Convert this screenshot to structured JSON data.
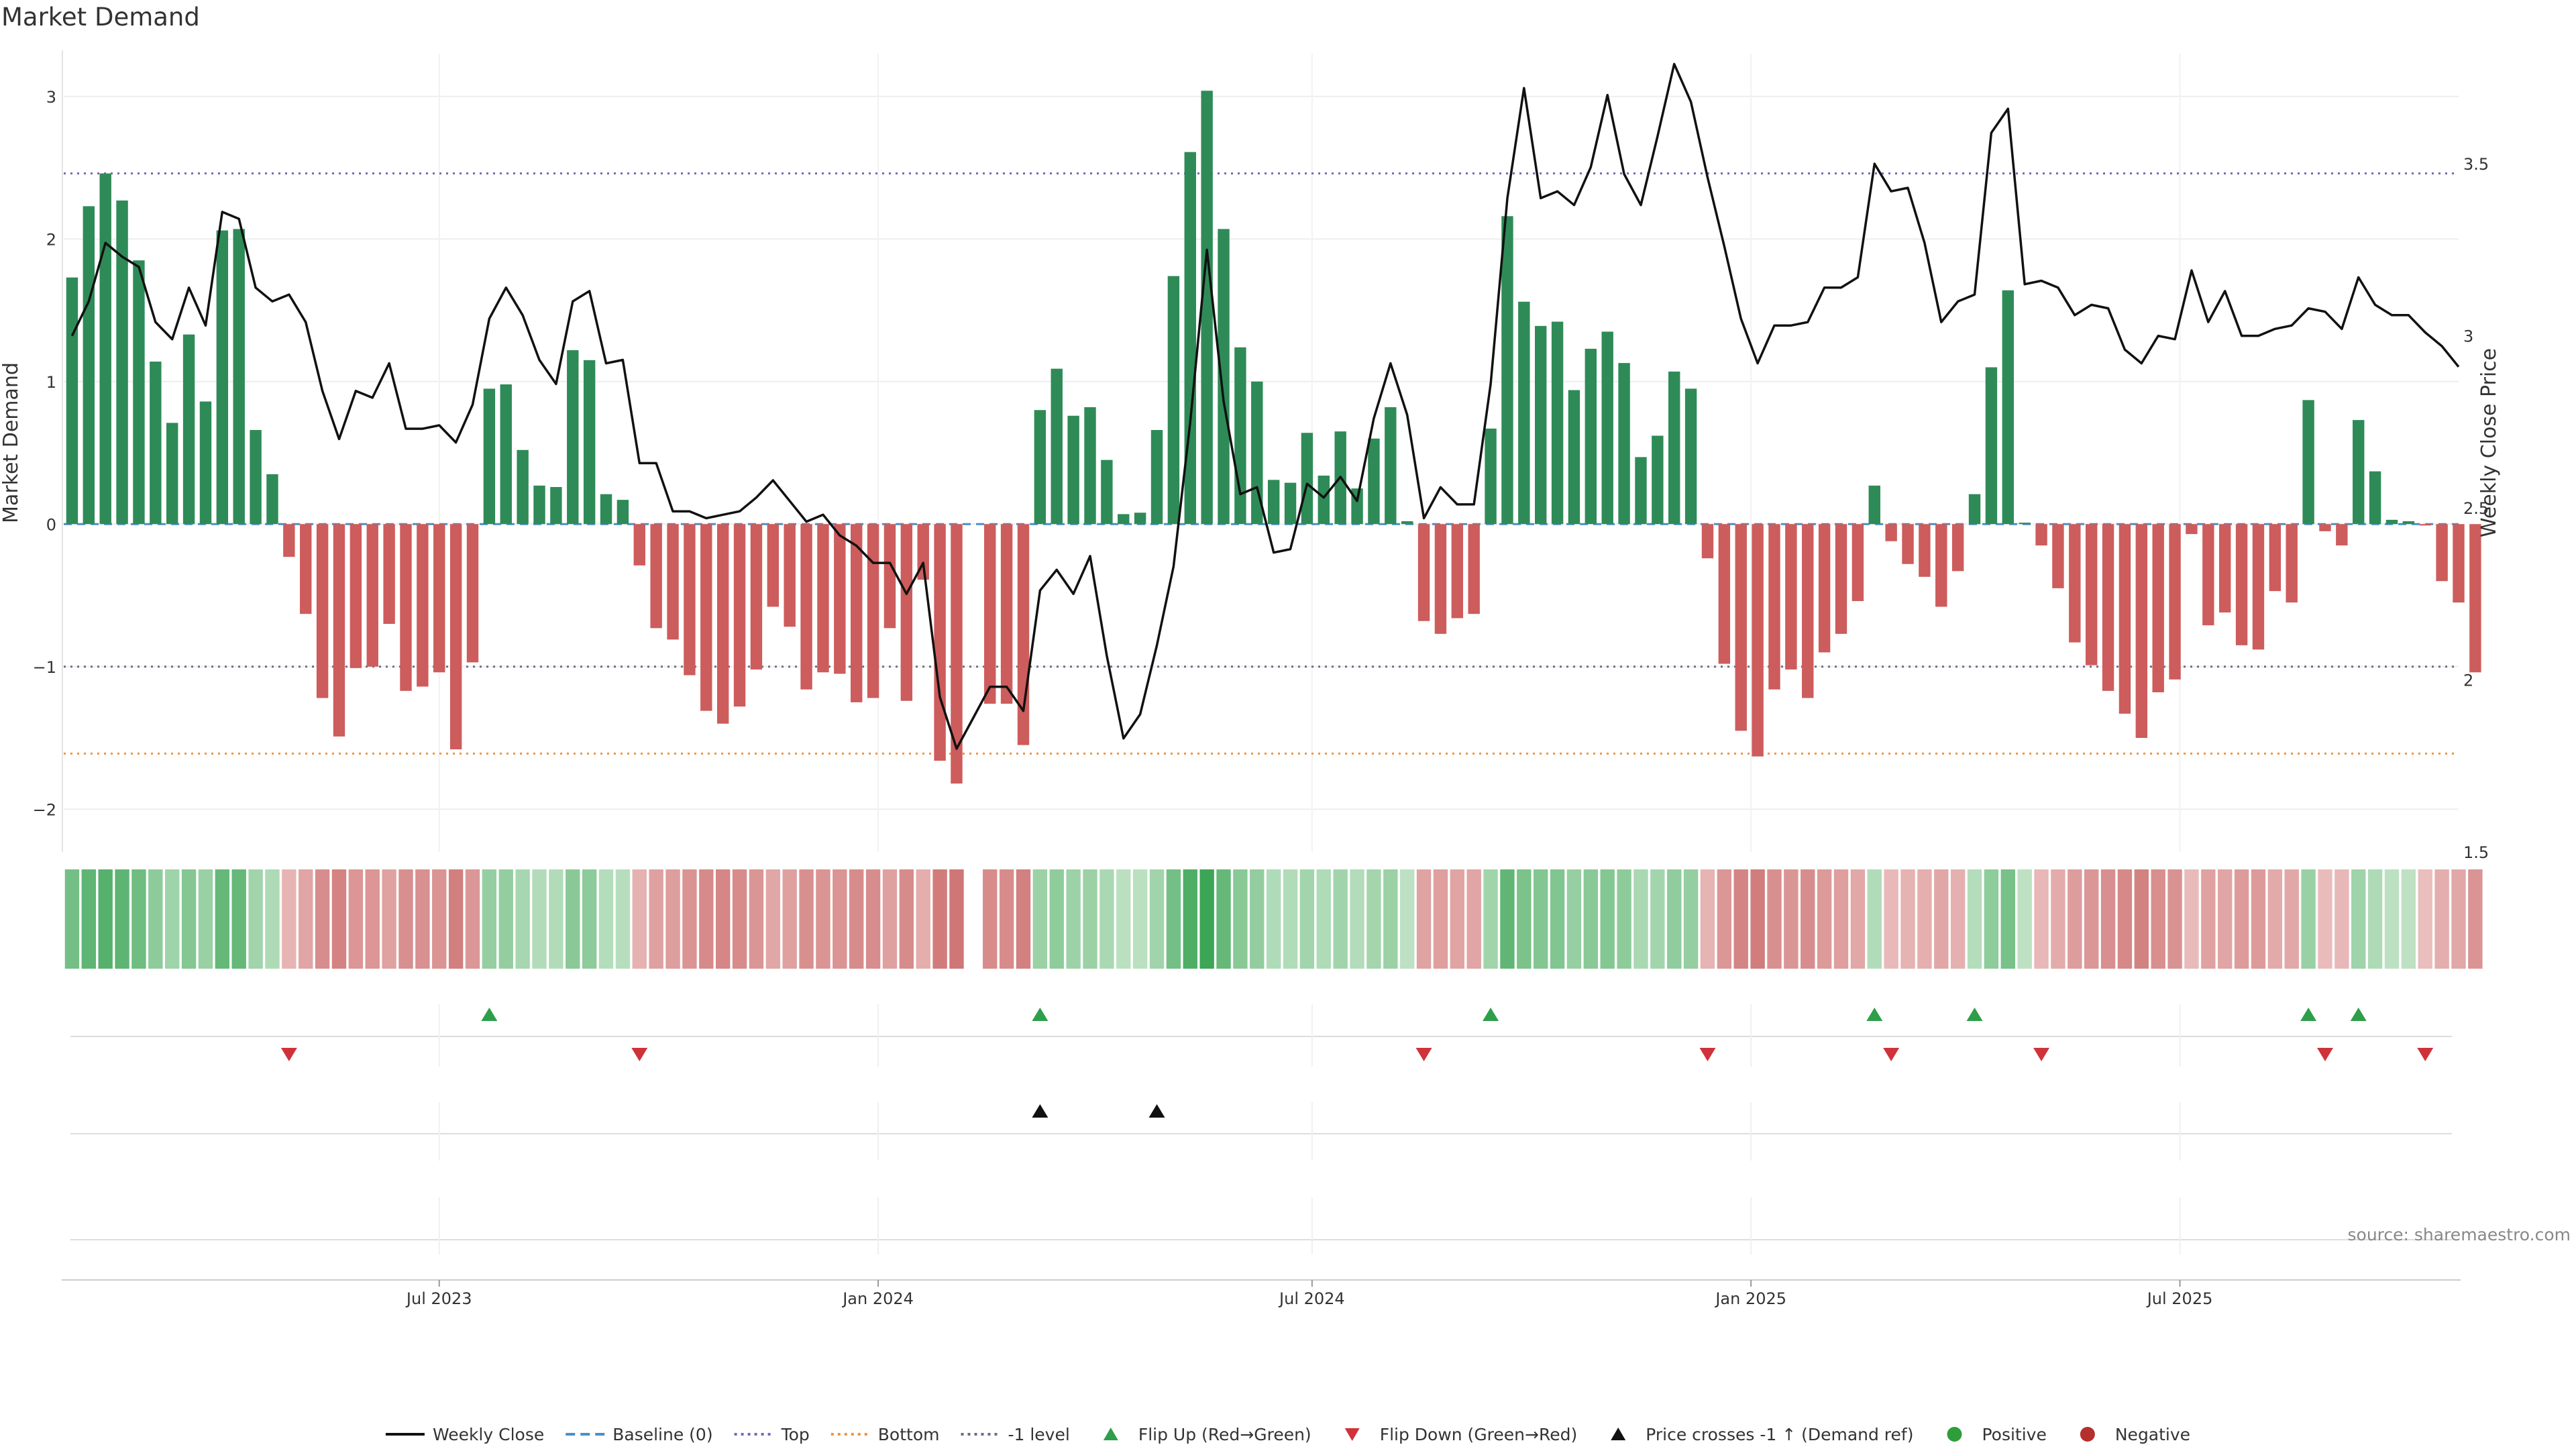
{
  "title": "Market Demand",
  "source": "source: sharemaestro.com",
  "chart_data": {
    "type": "bar",
    "title": "Market Demand",
    "ylabel": "Market Demand",
    "y2label": "Weekly Close Price",
    "ylim": [
      -2.3,
      3.3
    ],
    "y2lim": [
      1.5,
      3.82
    ],
    "yticks": [
      3,
      2,
      1,
      0,
      -1,
      -2
    ],
    "yticklabels": [
      "3",
      "2",
      "1",
      "0",
      "−1",
      "−2"
    ],
    "y2ticks": [
      3.5,
      3,
      2.5,
      2,
      1.5
    ],
    "y2ticklabels": [
      "3.5",
      "3",
      "2.5",
      "2",
      "1.5"
    ],
    "xticks": [
      {
        "label": "Jul 2023",
        "week": 22
      },
      {
        "label": "Jan 2024",
        "week": 48.3
      },
      {
        "label": "Jul 2024",
        "week": 74.3
      },
      {
        "label": "Jan 2025",
        "week": 100.6
      },
      {
        "label": "Jul 2025",
        "week": 126.3
      }
    ],
    "first_week": "2023-01-29",
    "x_weeks": 144,
    "reference_lines": [
      {
        "name": "Top",
        "value": 2.46,
        "color": "#7b68b5",
        "dash": "3 7"
      },
      {
        "name": "Bottom",
        "value": -1.61,
        "color": "#f0943f",
        "dash": "3 7"
      },
      {
        "name": "-1 level",
        "value": -1.0,
        "color": "#6b6b88",
        "dash": "3 7"
      },
      {
        "name": "Baseline (0)",
        "value": 0,
        "color": "#4a90c8",
        "dash": "12 8"
      }
    ],
    "series": [
      {
        "name": "Market Demand",
        "type": "bar",
        "values": [
          1.73,
          2.23,
          2.46,
          2.27,
          1.85,
          1.14,
          0.71,
          1.33,
          0.86,
          2.06,
          2.07,
          0.66,
          0.35,
          -0.23,
          -0.63,
          -1.22,
          -1.49,
          -1.01,
          -1.0,
          -0.7,
          -1.17,
          -1.14,
          -1.04,
          -1.58,
          -0.97,
          0.95,
          0.98,
          0.52,
          0.27,
          0.26,
          1.22,
          1.15,
          0.21,
          0.17,
          -0.29,
          -0.73,
          -0.81,
          -1.06,
          -1.31,
          -1.4,
          -1.28,
          -1.02,
          -0.58,
          -0.72,
          -1.16,
          -1.04,
          -1.05,
          -1.25,
          -1.22,
          -0.73,
          -1.24,
          -0.39,
          -1.66,
          -1.82,
          null,
          -1.26,
          -1.26,
          -1.55,
          0.8,
          1.09,
          0.76,
          0.82,
          0.45,
          0.07,
          0.08,
          0.66,
          1.74,
          2.61,
          3.04,
          2.07,
          1.24,
          1.0,
          0.31,
          0.29,
          0.64,
          0.34,
          0.65,
          0.25,
          0.6,
          0.82,
          0.02,
          -0.68,
          -0.77,
          -0.66,
          -0.63,
          0.67,
          2.16,
          1.56,
          1.39,
          1.42,
          0.94,
          1.23,
          1.35,
          1.13,
          0.47,
          0.62,
          1.07,
          0.95,
          -0.24,
          -0.98,
          -1.45,
          -1.63,
          -1.16,
          -1.02,
          -1.22,
          -0.9,
          -0.77,
          -0.54,
          0.27,
          -0.12,
          -0.28,
          -0.37,
          -0.58,
          -0.33,
          0.21,
          1.1,
          1.64,
          0.01,
          -0.15,
          -0.45,
          -0.83,
          -0.99,
          -1.17,
          -1.33,
          -1.5,
          -1.18,
          -1.09,
          -0.07,
          -0.71,
          -0.62,
          -0.85,
          -0.88,
          -0.47,
          -0.55,
          0.87,
          -0.05,
          -0.15,
          0.73,
          0.37,
          0.03,
          0.02,
          -0.01,
          -0.4,
          -0.55,
          -1.04
        ]
      },
      {
        "name": "Weekly Close",
        "type": "line",
        "values": [
          3.0,
          3.1,
          3.27,
          3.23,
          3.2,
          3.04,
          2.99,
          3.14,
          3.03,
          3.36,
          3.34,
          3.14,
          3.1,
          3.12,
          3.04,
          2.84,
          2.7,
          2.84,
          2.82,
          2.92,
          2.73,
          2.73,
          2.74,
          2.69,
          2.8,
          3.05,
          3.14,
          3.06,
          2.93,
          2.86,
          3.1,
          3.13,
          2.92,
          2.93,
          2.63,
          2.63,
          2.49,
          2.49,
          2.47,
          2.48,
          2.49,
          2.53,
          2.58,
          2.52,
          2.46,
          2.48,
          2.42,
          2.39,
          2.34,
          2.34,
          2.25,
          2.34,
          1.95,
          1.8,
          1.89,
          1.98,
          1.98,
          1.91,
          2.26,
          2.32,
          2.25,
          2.36,
          2.07,
          1.83,
          1.9,
          2.1,
          2.33,
          2.75,
          3.25,
          2.81,
          2.54,
          2.56,
          2.37,
          2.38,
          2.57,
          2.53,
          2.59,
          2.52,
          2.76,
          2.92,
          2.77,
          2.47,
          2.56,
          2.51,
          2.51,
          2.86,
          3.4,
          3.72,
          3.4,
          3.42,
          3.38,
          3.49,
          3.7,
          3.47,
          3.38,
          3.58,
          3.79,
          3.68,
          3.46,
          3.26,
          3.05,
          2.92,
          3.03,
          3.03,
          3.04,
          3.14,
          3.14,
          3.17,
          3.5,
          3.42,
          3.43,
          3.27,
          3.04,
          3.1,
          3.12,
          3.59,
          3.66,
          3.15,
          3.16,
          3.14,
          3.06,
          3.09,
          3.08,
          2.96,
          2.92,
          3.0,
          2.99,
          3.19,
          3.04,
          3.13,
          3.0,
          3.0,
          3.02,
          3.03,
          3.08,
          3.07,
          3.02,
          3.17,
          3.09,
          3.06,
          3.06,
          3.01,
          2.97,
          2.91
        ]
      }
    ],
    "events": {
      "flip_up_weeks": [
        25,
        58,
        85,
        108,
        114,
        134,
        137
      ],
      "flip_down_weeks": [
        13,
        34,
        81,
        98,
        109,
        118,
        135,
        141
      ],
      "price_cross_weeks": [
        58,
        65
      ]
    },
    "legend": {
      "placement": "bottom",
      "items": [
        {
          "label": "Weekly Close",
          "kind": "line",
          "color": "#111111"
        },
        {
          "label": "Baseline (0)",
          "kind": "dashed",
          "color": "#4a90c8"
        },
        {
          "label": "Top",
          "kind": "dotted",
          "color": "#7b68b5"
        },
        {
          "label": "Bottom",
          "kind": "dotted",
          "color": "#f0943f"
        },
        {
          "label": "-1 level",
          "kind": "dotted",
          "color": "#6b6b88"
        },
        {
          "label": "Flip Up (Red→Green)",
          "kind": "tri-up",
          "color": "#2e9e4a"
        },
        {
          "label": "Flip Down (Green→Red)",
          "kind": "tri-down",
          "color": "#d0323a"
        },
        {
          "label": "Price crosses -1 ↑ (Demand ref)",
          "kind": "tri-up",
          "color": "#111111"
        },
        {
          "label": "Positive",
          "kind": "dot",
          "color": "#2e9e3a"
        },
        {
          "label": "Negative",
          "kind": "dot",
          "color": "#b52f2f"
        }
      ]
    },
    "colors": {
      "positive": "#2e8b57",
      "negative": "#cd5c5c",
      "line": "#111111"
    },
    "grid": true
  }
}
